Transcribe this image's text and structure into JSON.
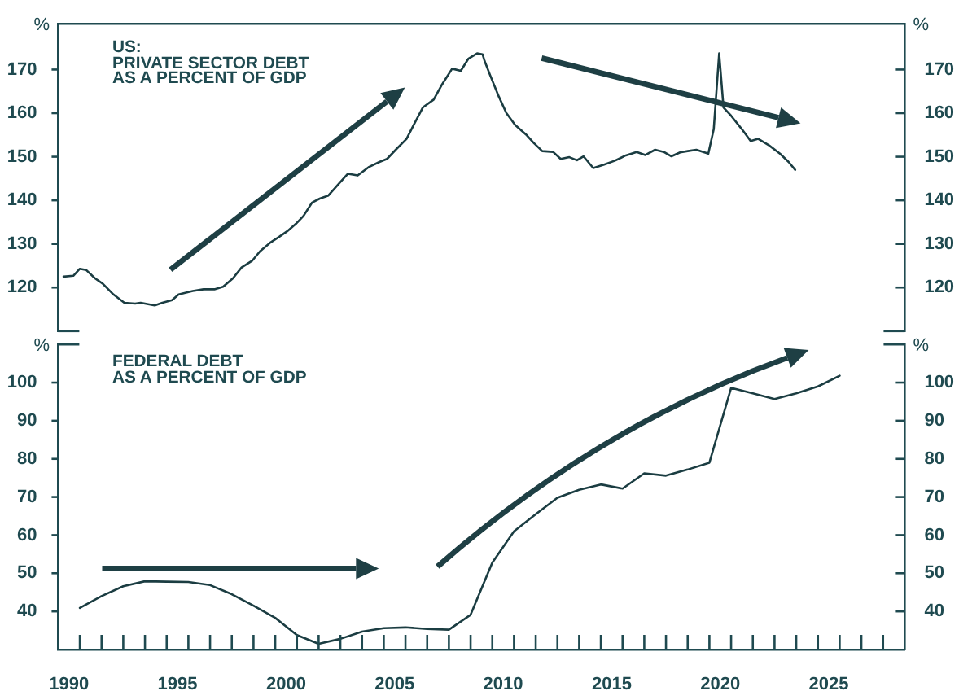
{
  "chart_data": [
    {
      "type": "line",
      "title": "US:\nPRIVATE SECTOR DEBT\nAS A PERCENT OF GDP",
      "ylabel": "%",
      "y2label": "%",
      "color": "#1b3d42",
      "x": [
        1989.75,
        1990.2,
        1990.5,
        1990.8,
        1991.2,
        1991.55,
        1992.05,
        1992.55,
        1993.05,
        1993.3,
        1993.95,
        1994.3,
        1994.75,
        1995.05,
        1995.7,
        1996.2,
        1996.7,
        1997.1,
        1997.55,
        1997.95,
        1998.45,
        1998.8,
        1999.3,
        1999.7,
        2000.05,
        2000.45,
        2000.8,
        2001.2,
        2001.55,
        2001.95,
        2002.45,
        2002.85,
        2003.3,
        2003.8,
        2004.3,
        2004.65,
        2005.05,
        2005.55,
        2005.9,
        2006.3,
        2006.8,
        2007.15,
        2007.65,
        2008.05,
        2008.4,
        2008.8,
        2009.05,
        2009.15,
        2009.4,
        2009.8,
        2010.15,
        2010.55,
        2011.05,
        2011.4,
        2011.8,
        2012.3,
        2012.65,
        2013.05,
        2013.4,
        2013.7,
        2014.15,
        2014.65,
        2015.15,
        2015.65,
        2016.15,
        2016.55,
        2017.0,
        2017.4,
        2017.75,
        2018.15,
        2018.5,
        2018.9,
        2019.45,
        2019.7,
        2019.95,
        2020.15,
        2020.5,
        2021.0,
        2021.4,
        2021.75,
        2022.25,
        2022.75,
        2023.15,
        2023.45
      ],
      "values": [
        122.5,
        122.7,
        124.3,
        124.0,
        122.1,
        120.9,
        118.4,
        116.5,
        116.3,
        116.5,
        115.9,
        116.5,
        117.1,
        118.4,
        119.2,
        119.6,
        119.6,
        120.2,
        122.1,
        124.6,
        126.2,
        128.3,
        130.4,
        131.7,
        132.9,
        134.6,
        136.4,
        139.5,
        140.4,
        141.1,
        143.9,
        146.1,
        145.7,
        147.6,
        148.8,
        149.5,
        151.6,
        154.1,
        157.5,
        161.3,
        163.1,
        166.3,
        170.2,
        169.7,
        172.5,
        173.7,
        173.5,
        171.9,
        168.7,
        163.8,
        160.0,
        157.3,
        155.1,
        153.2,
        151.3,
        151.1,
        149.5,
        149.9,
        149.2,
        150.1,
        147.4,
        148.2,
        149.1,
        150.3,
        151.1,
        150.4,
        151.6,
        151.1,
        150.1,
        151.0,
        151.3,
        151.6,
        150.7,
        156.3,
        173.7,
        161.3,
        159.4,
        156.3,
        153.6,
        154.1,
        152.6,
        150.7,
        148.8,
        147.0
      ],
      "xlim": [
        1989.5,
        2028.5
      ],
      "ylim": [
        110,
        180.5
      ],
      "yticks": [
        120,
        130,
        140,
        150,
        160,
        170
      ],
      "y2lim": [
        110,
        180.5
      ],
      "y2ticks": [
        120,
        130,
        140,
        150,
        160,
        170
      ],
      "tick_labels": "y"
    },
    {
      "type": "line",
      "title": "FEDERAL DEBT\nAS A PERCENT OF GDP",
      "ylabel": "%",
      "y2label": "%",
      "color": "#1b3d42",
      "x": [
        1990.5,
        1991.5,
        1992.5,
        1993.5,
        1994.5,
        1995.5,
        1996.5,
        1997.5,
        1998.5,
        1999.5,
        2000.5,
        2001.5,
        2002.5,
        2003.5,
        2004.5,
        2005.5,
        2006.5,
        2007.5,
        2008.5,
        2009.5,
        2010.5,
        2011.5,
        2012.5,
        2013.5,
        2014.5,
        2015.5,
        2016.5,
        2017.5,
        2018.5,
        2019.5,
        2020.5,
        2021.5,
        2022.5,
        2023.5,
        2024.5,
        2025.5
      ],
      "values": [
        40.9,
        44.0,
        46.6,
        47.9,
        47.8,
        47.7,
        46.9,
        44.5,
        41.5,
        38.3,
        33.8,
        31.5,
        32.8,
        34.7,
        35.6,
        35.8,
        35.4,
        35.2,
        39.1,
        52.8,
        61.0,
        65.5,
        69.8,
        71.9,
        73.3,
        72.2,
        76.2,
        75.6,
        77.2,
        79.0,
        98.6,
        97.2,
        95.7,
        97.2,
        99.0,
        101.8
      ],
      "xlim": [
        1989.5,
        2028.5
      ],
      "xticks": [
        1990,
        {
          "value": 1990.5,
          "label": null
        },
        {
          "value": 1991.5,
          "label": null
        },
        {
          "value": 1992.5,
          "label": null
        },
        {
          "value": 1993.5,
          "label": null
        },
        {
          "value": 1994.5,
          "label": null
        },
        1995,
        {
          "value": 1995.5,
          "label": null
        },
        {
          "value": 1996.5,
          "label": null
        },
        {
          "value": 1997.5,
          "label": null
        },
        {
          "value": 1998.5,
          "label": null
        },
        {
          "value": 1999.5,
          "label": null
        },
        2000,
        {
          "value": 2000.5,
          "label": null
        },
        {
          "value": 2001.5,
          "label": null
        },
        {
          "value": 2002.5,
          "label": null
        },
        {
          "value": 2003.5,
          "label": null
        },
        {
          "value": 2004.5,
          "label": null
        },
        2005,
        {
          "value": 2005.5,
          "label": null
        },
        {
          "value": 2006.5,
          "label": null
        },
        {
          "value": 2007.5,
          "label": null
        },
        {
          "value": 2008.5,
          "label": null
        },
        {
          "value": 2009.5,
          "label": null
        },
        2010,
        {
          "value": 2010.5,
          "label": null
        },
        {
          "value": 2011.5,
          "label": null
        },
        {
          "value": 2012.5,
          "label": null
        },
        {
          "value": 2013.5,
          "label": null
        },
        {
          "value": 2014.5,
          "label": null
        },
        2015,
        {
          "value": 2015.5,
          "label": null
        },
        {
          "value": 2016.5,
          "label": null
        },
        {
          "value": 2017.5,
          "label": null
        },
        {
          "value": 2018.5,
          "label": null
        },
        {
          "value": 2019.5,
          "label": null
        },
        2020,
        {
          "value": 2020.5,
          "label": null
        },
        {
          "value": 2021.5,
          "label": null
        },
        {
          "value": 2022.5,
          "label": null
        },
        {
          "value": 2023.5,
          "label": null
        },
        {
          "value": 2024.5,
          "label": null
        },
        2025,
        {
          "value": 2025.5,
          "label": null
        },
        {
          "value": 2026.5,
          "label": null
        },
        {
          "value": 2027.5,
          "label": null
        }
      ],
      "ylim": [
        30,
        110
      ],
      "yticks": [
        40,
        50,
        60,
        70,
        80,
        90,
        100
      ],
      "y2lim": [
        30,
        110
      ],
      "y2ticks": [
        40,
        50,
        60,
        70,
        80,
        90,
        100
      ]
    }
  ]
}
